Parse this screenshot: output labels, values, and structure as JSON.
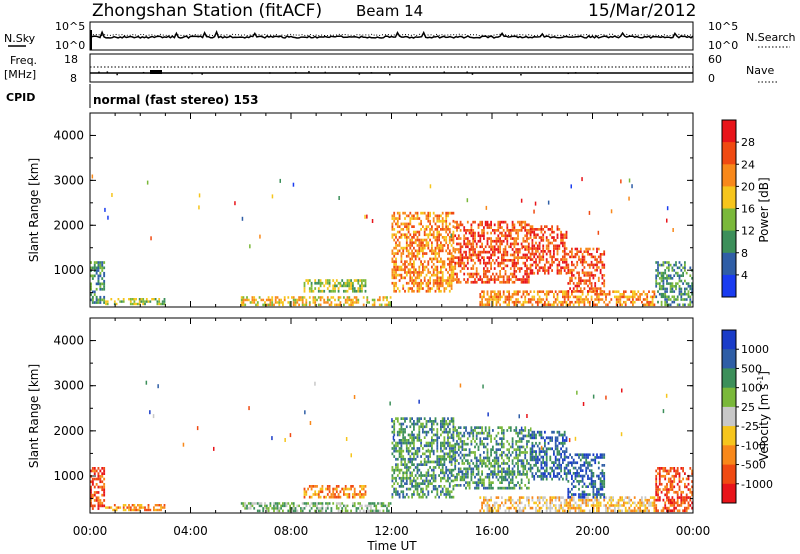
{
  "header": {
    "station": "Zhongshan Station (fitACF)",
    "beam": "Beam 14",
    "date": "15/Mar/2012"
  },
  "nsky_panel": {
    "left_label": "N.Sky",
    "left_ticks": [
      "10^5",
      "10^0"
    ],
    "right_label": "N.Search",
    "right_ticks": [
      "10^5",
      "10^0"
    ]
  },
  "freq_panel": {
    "left_label_1": "Freq.",
    "left_label_2": "[MHz]",
    "left_ticks": [
      "18",
      "8"
    ],
    "right_label": "Nave",
    "right_ticks": [
      "60",
      "0"
    ]
  },
  "cpid": {
    "label": "CPID",
    "mode": "normal (fast stereo) 153"
  },
  "chart_data": [
    {
      "type": "heatmap",
      "panel": "power",
      "ylabel": "Slant Range [km]",
      "xlabel": "",
      "ylim": [
        180,
        4500
      ],
      "xlim_hours": [
        0,
        24
      ],
      "yticks": [
        "1000",
        "2000",
        "3000",
        "4000"
      ],
      "colorbar": {
        "title": "Power [dB]",
        "ticks": [
          "28",
          "24",
          "20",
          "16",
          "12",
          "8",
          "4"
        ],
        "colors": [
          "#e8141a",
          "#f04a12",
          "#f8881a",
          "#f6c51c",
          "#7ab83a",
          "#3c8f5a",
          "#2f5ea6",
          "#1a3cf0"
        ]
      },
      "echo_regions": [
        {
          "t0": 0.0,
          "t1": 0.6,
          "r0": 250,
          "r1": 1200,
          "level": 2
        },
        {
          "t0": 0.6,
          "t1": 3.0,
          "r0": 220,
          "r1": 380,
          "level": 3
        },
        {
          "t0": 6.0,
          "t1": 12.0,
          "r0": 200,
          "r1": 420,
          "level": 4
        },
        {
          "t0": 8.5,
          "t1": 11.0,
          "r0": 500,
          "r1": 800,
          "level": 3
        },
        {
          "t0": 12.0,
          "t1": 14.5,
          "r0": 500,
          "r1": 2300,
          "level": 5
        },
        {
          "t0": 14.5,
          "t1": 17.5,
          "r0": 700,
          "r1": 2100,
          "level": 6
        },
        {
          "t0": 15.5,
          "t1": 22.5,
          "r0": 200,
          "r1": 550,
          "level": 5
        },
        {
          "t0": 17.5,
          "t1": 19.0,
          "r0": 900,
          "r1": 2000,
          "level": 6
        },
        {
          "t0": 19.0,
          "t1": 20.5,
          "r0": 500,
          "r1": 1500,
          "level": 6
        },
        {
          "t0": 22.5,
          "t1": 24.0,
          "r0": 200,
          "r1": 1200,
          "level": 2
        }
      ]
    },
    {
      "type": "heatmap",
      "panel": "velocity",
      "ylabel": "Slant Range [km]",
      "xlabel": "Time UT",
      "ylim": [
        180,
        4500
      ],
      "xlim_hours": [
        0,
        24
      ],
      "yticks": [
        "1000",
        "2000",
        "3000",
        "4000"
      ],
      "xticks": [
        "00:00",
        "04:00",
        "08:00",
        "12:00",
        "16:00",
        "20:00",
        "00:00"
      ],
      "colorbar": {
        "title": "Velocity [m s",
        "title_sup": "-1",
        "title_end": "]",
        "ticks": [
          "1000",
          "500",
          "100",
          "25",
          "-25",
          "-100",
          "-500",
          "-1000"
        ],
        "colors": [
          "#1a3cc8",
          "#2f5ea6",
          "#3c8f5a",
          "#7ab83a",
          "#c8c8c8",
          "#f6c51c",
          "#f8881a",
          "#f04a12",
          "#e8141a"
        ]
      },
      "echo_regions": [
        {
          "t0": 0.0,
          "t1": 0.6,
          "r0": 250,
          "r1": 1200,
          "level": 1
        },
        {
          "t0": 0.6,
          "t1": 3.0,
          "r0": 220,
          "r1": 380,
          "level": 2
        },
        {
          "t0": 6.0,
          "t1": 12.0,
          "r0": 200,
          "r1": 420,
          "level": 5
        },
        {
          "t0": 8.5,
          "t1": 11.0,
          "r0": 500,
          "r1": 800,
          "level": 2
        },
        {
          "t0": 12.0,
          "t1": 14.5,
          "r0": 500,
          "r1": 2300,
          "level": 6
        },
        {
          "t0": 14.5,
          "t1": 17.5,
          "r0": 700,
          "r1": 2100,
          "level": 6
        },
        {
          "t0": 15.5,
          "t1": 22.5,
          "r0": 200,
          "r1": 550,
          "level": 3
        },
        {
          "t0": 17.5,
          "t1": 19.0,
          "r0": 900,
          "r1": 2000,
          "level": 7
        },
        {
          "t0": 19.0,
          "t1": 20.5,
          "r0": 500,
          "r1": 1500,
          "level": 7
        },
        {
          "t0": 22.5,
          "t1": 24.0,
          "r0": 200,
          "r1": 1200,
          "level": 1
        }
      ]
    }
  ]
}
